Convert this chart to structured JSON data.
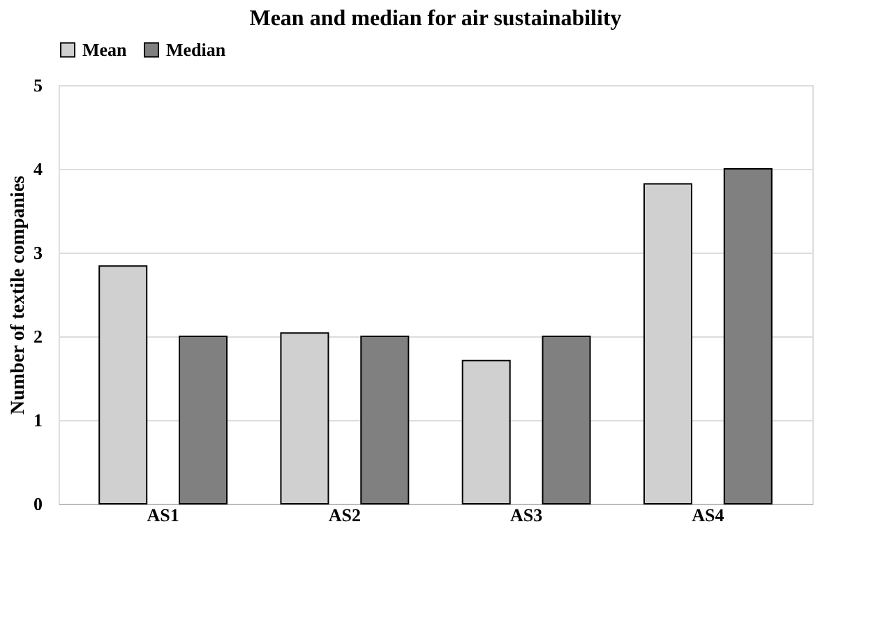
{
  "chart_data": {
    "type": "bar",
    "title": "Mean and median for air sustainability",
    "ylabel": "Number of textile companies",
    "categories": [
      "AS1",
      "AS2",
      "AS3",
      "AS4"
    ],
    "series": [
      {
        "name": "Mean",
        "color": "#d0d0d0",
        "values": [
          2.84,
          2.04,
          1.71,
          3.82
        ]
      },
      {
        "name": "Median",
        "color": "#808080",
        "values": [
          2,
          2,
          2,
          4
        ]
      }
    ],
    "ylim": [
      0,
      5
    ],
    "yticks": [
      0,
      1,
      2,
      3,
      4,
      5
    ],
    "grid": "y",
    "legend": "top"
  }
}
